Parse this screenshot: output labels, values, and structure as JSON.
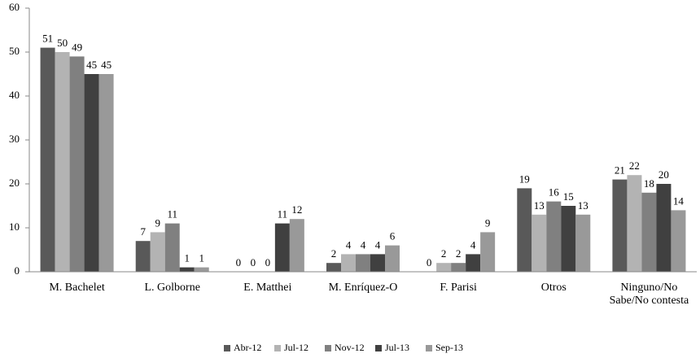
{
  "chart_data": {
    "type": "bar",
    "categories": [
      "M. Bachelet",
      "L. Golborne",
      "E. Matthei",
      "M. Enríquez-O",
      "F. Parisi",
      "Otros",
      "Ninguno/No Sabe/No contesta"
    ],
    "series": [
      {
        "name": "Abr-12",
        "color": "#595959",
        "values": [
          51,
          7,
          0,
          2,
          0,
          19,
          21
        ]
      },
      {
        "name": "Jul-12",
        "color": "#b3b3b3",
        "values": [
          50,
          9,
          0,
          4,
          2,
          13,
          22
        ]
      },
      {
        "name": "Nov-12",
        "color": "#808080",
        "values": [
          49,
          11,
          0,
          4,
          2,
          16,
          18
        ]
      },
      {
        "name": "Jul-13",
        "color": "#404040",
        "values": [
          45,
          1,
          11,
          4,
          4,
          15,
          20
        ]
      },
      {
        "name": "Sep-13",
        "color": "#999999",
        "values": [
          45,
          1,
          12,
          6,
          9,
          13,
          14
        ]
      }
    ],
    "ylim": [
      0,
      60
    ],
    "yticks": [
      0,
      10,
      20,
      30,
      40,
      50,
      60
    ],
    "grid": false,
    "legend": "bottom"
  }
}
